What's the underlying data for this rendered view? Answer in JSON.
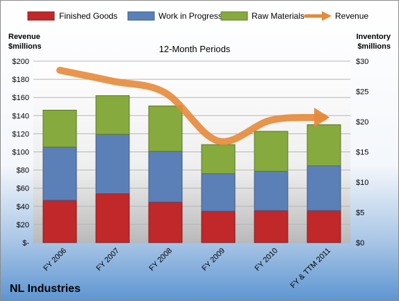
{
  "company": "NL Industries",
  "left_axis_title": [
    "Revenue",
    "$millions"
  ],
  "right_axis_title": [
    "Inventory",
    "$millions"
  ],
  "chart_data": {
    "type": "bar",
    "stacked": true,
    "title": "12-Month Periods",
    "categories": [
      "FY 2006",
      "FY 2007",
      "FY 2008",
      "FY 2009",
      "FY 2010",
      "FY & TTM 2011"
    ],
    "series": [
      {
        "name": "Finished Goods",
        "axis": "right",
        "color": "#c0282a",
        "values": [
          7.0,
          8.1,
          6.7,
          5.2,
          5.3,
          5.3
        ]
      },
      {
        "name": "Work in Progress",
        "axis": "right",
        "color": "#5b80b8",
        "values": [
          8.8,
          9.8,
          8.4,
          6.2,
          6.5,
          7.4
        ]
      },
      {
        "name": "Raw Materials",
        "axis": "right",
        "color": "#86aa3e",
        "values": [
          6.1,
          6.4,
          7.5,
          4.8,
          6.6,
          6.8
        ]
      },
      {
        "name": "Revenue",
        "axis": "left",
        "type": "line",
        "color": "#e58a3a",
        "values": [
          190,
          178,
          165,
          112,
          135,
          138
        ]
      }
    ],
    "left_axis": {
      "min": 0,
      "max": 200,
      "step": 20,
      "tick_labels": [
        "$-",
        "$20",
        "$40",
        "$60",
        "$80",
        "$100",
        "$120",
        "$140",
        "$160",
        "$180",
        "$200"
      ]
    },
    "right_axis": {
      "min": 0,
      "max": 30,
      "step": 5,
      "tick_labels": [
        "$0",
        "$5",
        "$10",
        "$15",
        "$20",
        "$25",
        "$30"
      ]
    },
    "gridlines": true,
    "legend_position": "top"
  }
}
